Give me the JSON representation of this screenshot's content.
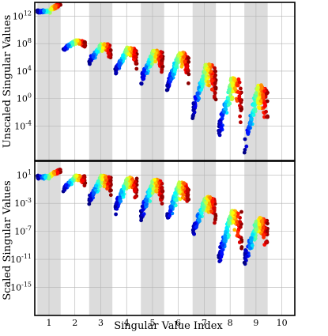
{
  "chart_data": [
    {
      "type": "scatter",
      "title": "",
      "xlabel": "",
      "ylabel": "Unscaled Singular Values",
      "yscale": "log",
      "xlim": [
        0.45,
        10.5
      ],
      "ylim": [
        1e-09,
        100000000000000.0
      ],
      "xticks": [
        1,
        2,
        3,
        4,
        5,
        6,
        7,
        8,
        9,
        10
      ],
      "yticks": [
        {
          "value": 1000000000000.0,
          "base": "10",
          "exp": "12"
        },
        {
          "value": 100000000.0,
          "base": "10",
          "exp": "8"
        },
        {
          "value": 10000.0,
          "base": "10",
          "exp": "4"
        },
        {
          "value": 1.0,
          "base": "10",
          "exp": "0"
        },
        {
          "value": 0.0001,
          "base": "10",
          "exp": "-4"
        }
      ],
      "shaded_bands": [
        [
          0.55,
          1.45
        ],
        [
          2.55,
          3.45
        ],
        [
          4.55,
          5.45
        ],
        [
          6.55,
          7.45
        ],
        [
          8.55,
          9.45
        ]
      ],
      "grid": true,
      "clusters": [
        {
          "index": 1,
          "x_range": [
            0.55,
            1.45
          ],
          "y_min": 3000000000000.0,
          "y_max": 8000000000000.0,
          "y_top": 60000000000000.0
        },
        {
          "index": 2,
          "x_range": [
            1.55,
            2.4
          ],
          "y_min": 10000000.0,
          "y_max": 300000000.0,
          "y_top": 300000000.0
        },
        {
          "index": 3,
          "x_range": [
            2.55,
            3.4
          ],
          "y_min": 100000.0,
          "y_max": 100000000.0,
          "y_top": 100000000.0
        },
        {
          "index": 4,
          "x_range": [
            3.55,
            4.4
          ],
          "y_min": 3000.0,
          "y_max": 30000000.0,
          "y_top": 30000000.0
        },
        {
          "index": 5,
          "x_range": [
            4.55,
            5.4
          ],
          "y_min": 100.0,
          "y_max": 10000000.0,
          "y_top": 10000000.0
        },
        {
          "index": 6,
          "x_range": [
            5.55,
            6.4
          ],
          "y_min": 10.0,
          "y_max": 5000000.0,
          "y_top": 5000000.0
        },
        {
          "index": 7,
          "x_range": [
            6.55,
            7.45
          ],
          "y_min": 0.001,
          "y_max": 100000.0,
          "y_top": 100000.0
        },
        {
          "index": 8,
          "x_range": [
            7.55,
            8.45
          ],
          "y_min": 1e-06,
          "y_max": 1000.0,
          "y_top": 1000.0
        },
        {
          "index": 9,
          "x_range": [
            8.55,
            9.45
          ],
          "y_min": 1e-08,
          "y_max": 100.0,
          "y_top": 100.0
        }
      ],
      "colormap": "jet"
    },
    {
      "type": "scatter",
      "title": "",
      "xlabel": "Singular Value Index",
      "ylabel": "Scaled Singular Values",
      "yscale": "log",
      "xlim": [
        0.45,
        10.5
      ],
      "ylim": [
        1e-19,
        1000.0
      ],
      "xticks": [
        1,
        2,
        3,
        4,
        5,
        6,
        7,
        8,
        9,
        10
      ],
      "yticks": [
        {
          "value": 10.0,
          "base": "10",
          "exp": "1"
        },
        {
          "value": 0.001,
          "base": "10",
          "exp": "-3"
        },
        {
          "value": 1e-07,
          "base": "10",
          "exp": "-7"
        },
        {
          "value": 1e-11,
          "base": "10",
          "exp": "-11"
        },
        {
          "value": 1e-15,
          "base": "10",
          "exp": "-15"
        }
      ],
      "shaded_bands": [
        [
          0.55,
          1.45
        ],
        [
          2.55,
          3.45
        ],
        [
          4.55,
          5.45
        ],
        [
          6.55,
          7.45
        ],
        [
          8.55,
          9.45
        ]
      ],
      "grid": true,
      "clusters": [
        {
          "index": 1,
          "x_range": [
            0.55,
            1.45
          ],
          "y_min": 3,
          "y_max": 10,
          "y_top": 50
        },
        {
          "index": 2,
          "x_range": [
            1.55,
            2.4
          ],
          "y_min": 0.05,
          "y_max": 10,
          "y_top": 10
        },
        {
          "index": 3,
          "x_range": [
            2.55,
            3.4
          ],
          "y_min": 0.001,
          "y_max": 10,
          "y_top": 10
        },
        {
          "index": 4,
          "x_range": [
            3.55,
            4.4
          ],
          "y_min": 3e-05,
          "y_max": 5,
          "y_top": 5
        },
        {
          "index": 5,
          "x_range": [
            4.55,
            5.4
          ],
          "y_min": 5e-06,
          "y_max": 3,
          "y_top": 3
        },
        {
          "index": 6,
          "x_range": [
            5.55,
            6.4
          ],
          "y_min": 1e-06,
          "y_max": 1,
          "y_top": 1
        },
        {
          "index": 7,
          "x_range": [
            6.55,
            7.45
          ],
          "y_min": 1e-08,
          "y_max": 0.01,
          "y_top": 0.01
        },
        {
          "index": 8,
          "x_range": [
            7.55,
            8.45
          ],
          "y_min": 1e-12,
          "y_max": 0.0001,
          "y_top": 0.0001
        },
        {
          "index": 9,
          "x_range": [
            8.55,
            9.45
          ],
          "y_min": 1e-12,
          "y_max": 1e-05,
          "y_top": 1e-05
        }
      ],
      "colormap": "jet"
    }
  ]
}
